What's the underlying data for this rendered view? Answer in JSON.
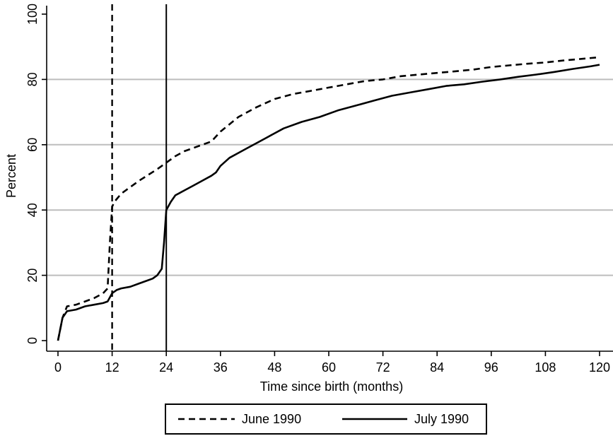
{
  "chart_data": {
    "type": "line",
    "title": "",
    "xlabel": "Time since birth (months)",
    "ylabel": "Percent",
    "xlim": [
      0,
      120
    ],
    "ylim": [
      0,
      100
    ],
    "x_ticks": [
      "0",
      "12",
      "24",
      "36",
      "48",
      "60",
      "72",
      "84",
      "96",
      "108",
      "120"
    ],
    "y_ticks": [
      "0",
      "20",
      "40",
      "60",
      "80",
      "100"
    ],
    "grid": "horizontal",
    "legend_position": "bottom",
    "reference_lines": [
      {
        "x": 12,
        "style": "dashed"
      },
      {
        "x": 24,
        "style": "solid"
      }
    ],
    "series": [
      {
        "name": "June 1990",
        "style": "dashed",
        "x": [
          0,
          1,
          2,
          4,
          6,
          8,
          10,
          11,
          11.5,
          12,
          12.5,
          14,
          18,
          22,
          24,
          26,
          28,
          30,
          34,
          36,
          40,
          44,
          48,
          52,
          56,
          60,
          64,
          68,
          72,
          76,
          80,
          84,
          88,
          92,
          96,
          100,
          104,
          108,
          112,
          116,
          120
        ],
        "y": [
          0,
          7,
          10.5,
          11,
          12,
          13,
          14.5,
          16,
          30,
          41,
          42.5,
          45,
          49,
          52.5,
          54.5,
          56.5,
          58,
          59,
          61,
          64,
          68.5,
          71.5,
          74,
          75.5,
          76.5,
          77.5,
          78.5,
          79.5,
          80,
          81,
          81.5,
          82,
          82.5,
          83,
          83.8,
          84.3,
          84.8,
          85.2,
          85.8,
          86.3,
          86.8
        ]
      },
      {
        "name": "July 1990",
        "style": "solid",
        "x": [
          0,
          1,
          2,
          4,
          6,
          8,
          10,
          11,
          12,
          13,
          14,
          16,
          18,
          20,
          21,
          22,
          23,
          23.5,
          24,
          25,
          26,
          28,
          30,
          32,
          34,
          35,
          36,
          38,
          40,
          42,
          44,
          46,
          48,
          50,
          54,
          58,
          62,
          66,
          70,
          74,
          78,
          82,
          86,
          90,
          94,
          98,
          102,
          106,
          110,
          114,
          118,
          120
        ],
        "y": [
          0,
          7,
          9,
          9.5,
          10.5,
          11,
          11.5,
          12,
          14.5,
          15.5,
          16,
          16.5,
          17.5,
          18.5,
          19,
          20,
          22,
          30,
          40,
          42.5,
          44.5,
          46,
          47.5,
          49,
          50.5,
          51.5,
          53.5,
          56,
          57.5,
          59,
          60.5,
          62,
          63.5,
          65,
          67,
          68.5,
          70.5,
          72,
          73.5,
          75,
          76,
          77,
          78,
          78.5,
          79.3,
          80,
          80.8,
          81.5,
          82.3,
          83.2,
          84,
          84.5
        ]
      }
    ]
  }
}
